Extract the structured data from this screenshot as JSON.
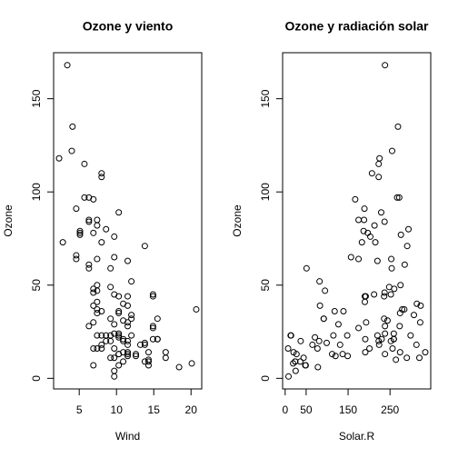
{
  "chart_data": [
    {
      "type": "scatter",
      "title": "Ozone y viento",
      "xlabel": "Wind",
      "ylabel": "Ozone",
      "xlim": [
        1.564,
        21.436
      ],
      "ylim": [
        -5.68,
        174.68
      ],
      "xticks": [
        5,
        10,
        15,
        20
      ],
      "yticks": [
        0,
        50,
        100,
        150
      ],
      "color": "#000000",
      "x": [
        7.4,
        8.0,
        12.6,
        11.5,
        14.9,
        8.6,
        13.8,
        20.1,
        6.9,
        9.7,
        9.2,
        10.9,
        13.2,
        11.5,
        12.0,
        18.4,
        11.5,
        9.7,
        9.7,
        16.6,
        9.7,
        12.0,
        12.0,
        14.9,
        5.7,
        7.4,
        9.7,
        13.8,
        11.5,
        8.0,
        14.9,
        20.7,
        9.2,
        11.5,
        10.3,
        4.1,
        9.2,
        9.2,
        4.6,
        10.9,
        5.1,
        6.3,
        5.7,
        7.4,
        14.3,
        14.9,
        14.3,
        6.9,
        10.3,
        6.3,
        5.1,
        11.5,
        6.9,
        8.6,
        8.0,
        8.6,
        12.0,
        7.4,
        7.4,
        7.4,
        9.2,
        6.9,
        13.8,
        7.4,
        6.9,
        7.4,
        4.6,
        4.0,
        10.3,
        8.0,
        11.5,
        11.5,
        9.7,
        10.3,
        6.3,
        7.4,
        10.9,
        10.3,
        15.5,
        14.3,
        9.7,
        3.4,
        8.0,
        9.7,
        2.3,
        6.3,
        6.3,
        6.9,
        5.1,
        2.8,
        4.6,
        7.4,
        15.5,
        10.9,
        10.3,
        10.9,
        9.7,
        14.9,
        15.5,
        6.3,
        10.9,
        11.5,
        6.9,
        13.8,
        10.3,
        10.3,
        8.0,
        12.6,
        9.2,
        10.3,
        10.3,
        16.6,
        6.9,
        14.3,
        8.0,
        11.5
      ],
      "y": [
        41,
        36,
        12,
        18,
        28,
        23,
        19,
        8,
        7,
        16,
        11,
        14,
        18,
        14,
        34,
        6,
        30,
        11,
        1,
        11,
        4,
        32,
        23,
        45,
        115,
        37,
        29,
        71,
        39,
        23,
        21,
        37,
        20,
        12,
        13,
        135,
        49,
        32,
        64,
        40,
        77,
        97,
        97,
        85,
        10,
        27,
        7,
        48,
        35,
        61,
        79,
        63,
        16,
        80,
        108,
        20,
        52,
        82,
        50,
        64,
        59,
        39,
        9,
        16,
        78,
        35,
        66,
        122,
        89,
        110,
        44,
        28,
        65,
        22,
        59,
        23,
        31,
        44,
        21,
        9,
        45,
        168,
        73,
        76,
        118,
        84,
        85,
        96,
        78,
        73,
        91,
        47,
        32,
        20,
        23,
        21,
        24,
        44,
        21,
        28,
        9,
        13,
        46,
        18,
        13,
        24,
        16,
        13,
        23,
        36,
        7,
        14,
        30,
        14,
        18,
        20
      ]
    },
    {
      "type": "scatter",
      "title": "Ozone y radiación solar",
      "xlabel": "Solar.R",
      "ylabel": "Ozone",
      "xlim": [
        -6.08,
        347.08
      ],
      "ylim": [
        -5.68,
        174.68
      ],
      "xticks": [
        0,
        50,
        150,
        250
      ],
      "yticks": [
        0,
        50,
        100,
        150
      ],
      "color": "#000000",
      "x": [
        190,
        118,
        149,
        313,
        299,
        99,
        19,
        256,
        290,
        274,
        65,
        334,
        307,
        78,
        322,
        44,
        8,
        320,
        25,
        92,
        13,
        252,
        223,
        279,
        127,
        291,
        323,
        148,
        191,
        284,
        37,
        120,
        137,
        269,
        248,
        236,
        175,
        314,
        276,
        267,
        272,
        175,
        264,
        175,
        48,
        260,
        274,
        285,
        187,
        220,
        7,
        294,
        223,
        81,
        82,
        213,
        275,
        253,
        254,
        83,
        24,
        77,
        255,
        229,
        207,
        192,
        273,
        157,
        71,
        51,
        115,
        244,
        190,
        259,
        36,
        212,
        238,
        215,
        203,
        225,
        237,
        188,
        167,
        197,
        183,
        189,
        95,
        92,
        252,
        220,
        230,
        259,
        236,
        259,
        238,
        24,
        112,
        237,
        224,
        27,
        238,
        201,
        238,
        14,
        139,
        49,
        20,
        193,
        191,
        131,
        223
      ],
      "y": [
        41,
        36,
        12,
        18,
        23,
        19,
        8,
        16,
        11,
        14,
        18,
        14,
        34,
        6,
        30,
        11,
        1,
        11,
        4,
        32,
        23,
        45,
        115,
        37,
        29,
        71,
        39,
        23,
        21,
        37,
        20,
        12,
        13,
        135,
        49,
        32,
        64,
        40,
        77,
        97,
        97,
        85,
        10,
        27,
        7,
        48,
        35,
        61,
        79,
        63,
        16,
        80,
        108,
        20,
        52,
        82,
        50,
        64,
        59,
        39,
        9,
        16,
        122,
        89,
        110,
        44,
        28,
        65,
        22,
        59,
        23,
        31,
        44,
        21,
        9,
        45,
        168,
        73,
        76,
        118,
        84,
        85,
        96,
        78,
        73,
        91,
        47,
        32,
        20,
        23,
        21,
        24,
        44,
        21,
        28,
        9,
        13,
        46,
        18,
        13,
        24,
        16,
        13,
        23,
        36,
        7,
        14,
        30,
        14,
        18,
        20
      ]
    }
  ]
}
